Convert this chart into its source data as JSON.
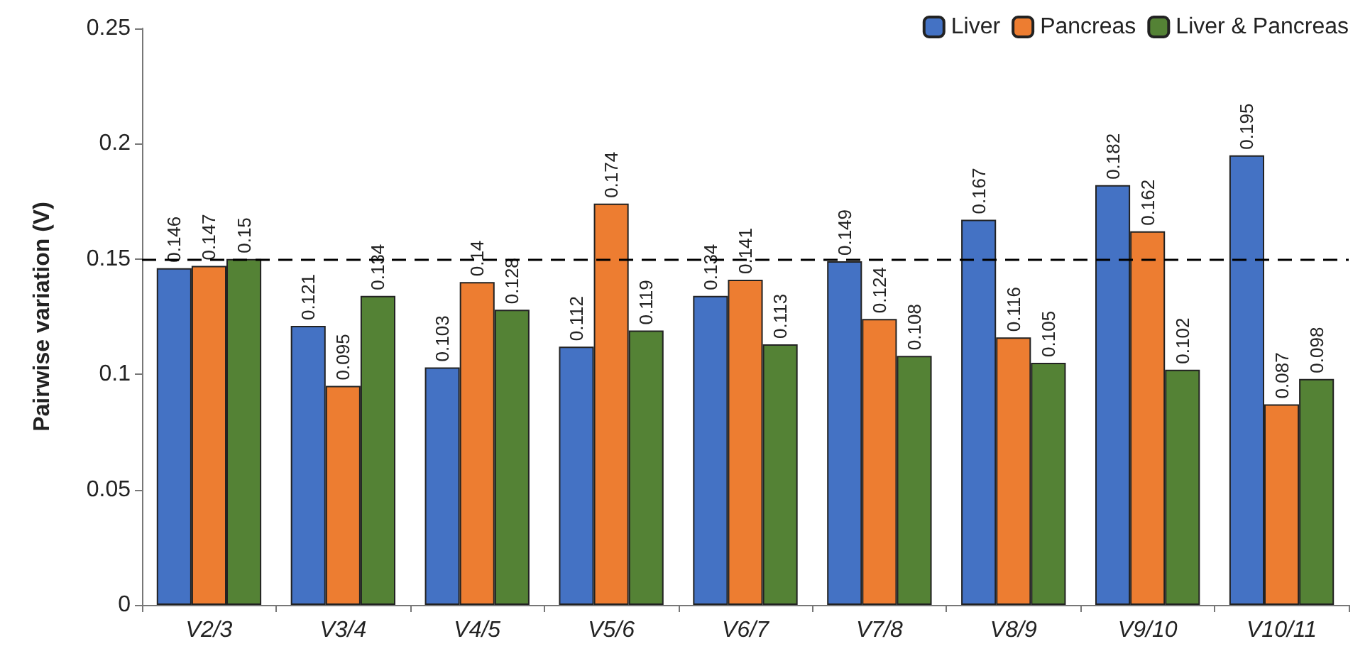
{
  "chart_data": {
    "type": "bar",
    "ylabel": "Pairwise variation (V)",
    "categories": [
      "V2/3",
      "V3/4",
      "V4/5",
      "V5/6",
      "V6/7",
      "V7/8",
      "V8/9",
      "V9/10",
      "V10/11"
    ],
    "series": [
      {
        "name": "Liver",
        "color": "#4472c4",
        "values": [
          0.146,
          0.121,
          0.103,
          0.112,
          0.134,
          0.149,
          0.167,
          0.182,
          0.195
        ]
      },
      {
        "name": "Pancreas",
        "color": "#ed7d31",
        "values": [
          0.147,
          0.095,
          0.14,
          0.174,
          0.141,
          0.124,
          0.116,
          0.162,
          0.087
        ]
      },
      {
        "name": "Liver & Pancreas",
        "color": "#548235",
        "values": [
          0.15,
          0.134,
          0.128,
          0.119,
          0.113,
          0.108,
          0.105,
          0.102,
          0.098
        ]
      }
    ],
    "ylim": [
      0,
      0.25
    ],
    "yticks": [
      0,
      0.05,
      0.1,
      0.15,
      0.2,
      0.25
    ],
    "ref_lines": [
      {
        "axis": "y",
        "value": 0.15,
        "color": "#000000",
        "line_style": "dashed"
      }
    ],
    "data_labels": true,
    "grid": false,
    "legend": "top right"
  }
}
